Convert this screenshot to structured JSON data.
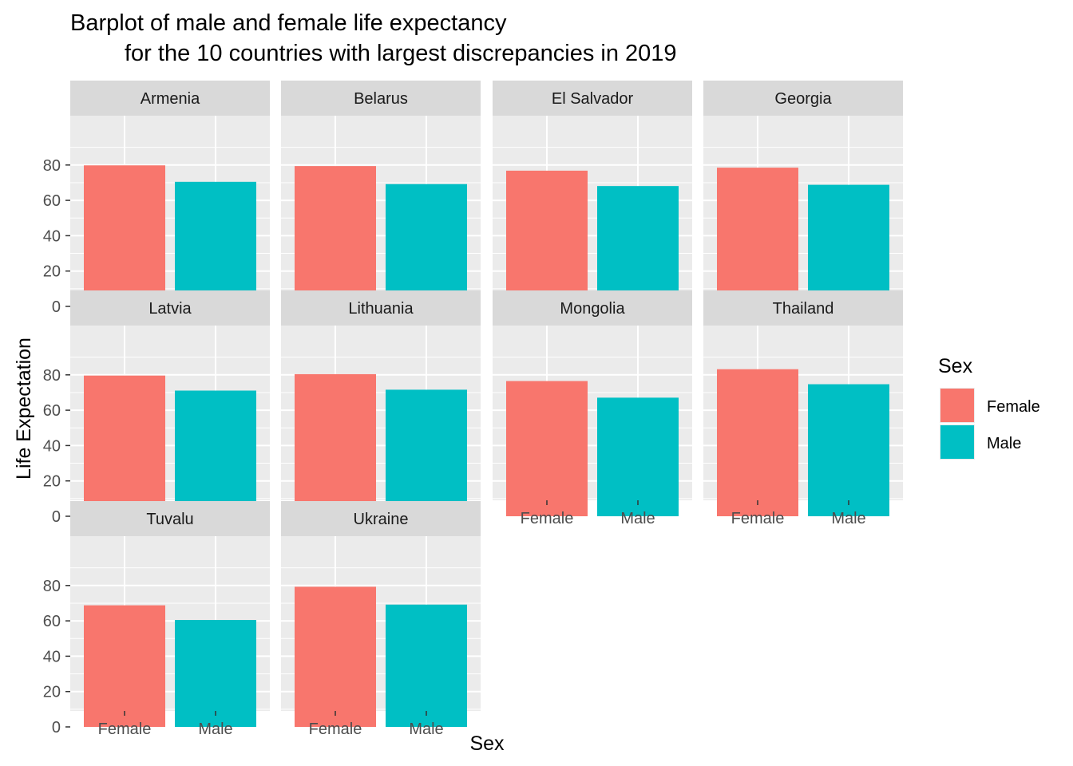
{
  "chart_data": {
    "type": "bar",
    "title_lines": [
      "Barplot of male and female life expectancy",
      "for the 10 countries with largest discrepancies in 2019"
    ],
    "xlabel": "Sex",
    "ylabel": "Life Expectation",
    "categories": [
      "Female",
      "Male"
    ],
    "ylim": [
      0,
      90
    ],
    "y_ticks": [
      "0",
      "20",
      "40",
      "60",
      "80"
    ],
    "grid": true,
    "legend": {
      "title": "Sex",
      "position": "right",
      "entries": [
        {
          "label": "Female",
          "color": "#F8766D"
        },
        {
          "label": "Male",
          "color": "#00BFC4"
        }
      ]
    },
    "panels": [
      {
        "label": "Armenia",
        "values": [
          79.8,
          70.5
        ]
      },
      {
        "label": "Belarus",
        "values": [
          79.4,
          69.2
        ]
      },
      {
        "label": "El Salvador",
        "values": [
          76.8,
          68.1
        ]
      },
      {
        "label": "Georgia",
        "values": [
          78.5,
          68.8
        ]
      },
      {
        "label": "Latvia",
        "values": [
          79.6,
          71.1
        ]
      },
      {
        "label": "Lithuania",
        "values": [
          80.4,
          71.6
        ]
      },
      {
        "label": "Mongolia",
        "values": [
          76.5,
          67.1
        ]
      },
      {
        "label": "Thailand",
        "values": [
          83.2,
          74.7
        ]
      },
      {
        "label": "Tuvalu",
        "values": [
          68.8,
          60.5
        ]
      },
      {
        "label": "Ukraine",
        "values": [
          79.3,
          69.2
        ]
      }
    ]
  },
  "colors": {
    "panel_background": "#EBEBEB",
    "strip_background": "#D9D9D9",
    "gridline": "#FFFFFF",
    "tick": "#333333"
  }
}
